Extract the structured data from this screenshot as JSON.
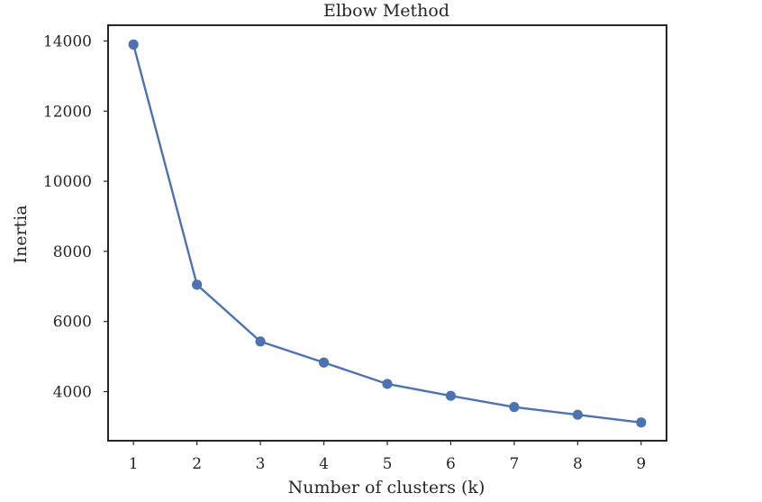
{
  "chart_data": {
    "type": "line",
    "title": "Elbow Method",
    "xlabel": "Number of clusters (k)",
    "ylabel": "Inertia",
    "x": [
      1,
      2,
      3,
      4,
      5,
      6,
      7,
      8,
      9
    ],
    "series": [
      {
        "values": [
          13900,
          7050,
          5430,
          4830,
          4220,
          3880,
          3560,
          3340,
          3120
        ]
      }
    ],
    "xlim": [
      0.6,
      9.4
    ],
    "ylim": [
      2600,
      14450
    ],
    "xticks": [
      1,
      2,
      3,
      4,
      5,
      6,
      7,
      8,
      9
    ],
    "yticks": [
      4000,
      6000,
      8000,
      10000,
      12000,
      14000
    ],
    "xtick_labels": [
      "1",
      "2",
      "3",
      "4",
      "5",
      "6",
      "7",
      "8",
      "9"
    ],
    "ytick_labels": [
      "4000",
      "6000",
      "8000",
      "10000",
      "12000",
      "14000"
    ],
    "line_color": "#4c72b0",
    "marker": "circle",
    "grid": false,
    "legend": false
  }
}
